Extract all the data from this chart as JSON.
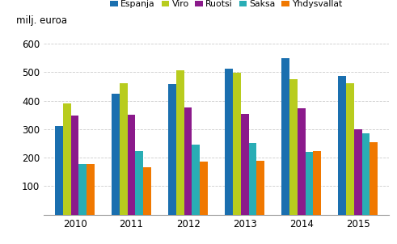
{
  "years": [
    "2010",
    "2011",
    "2012",
    "2013",
    "2014",
    "2015"
  ],
  "series": {
    "Espanja": [
      312,
      425,
      457,
      512,
      548,
      487
    ],
    "Viro": [
      390,
      462,
      505,
      497,
      475,
      460
    ],
    "Ruotsi": [
      348,
      350,
      377,
      352,
      372,
      300
    ],
    "Saksa": [
      178,
      222,
      247,
      251,
      220,
      285
    ],
    "Yhdysvallat": [
      178,
      167,
      185,
      190,
      222,
      253
    ]
  },
  "colors": {
    "Espanja": "#1a6faf",
    "Viro": "#b8cc1e",
    "Ruotsi": "#8b1a8b",
    "Saksa": "#29adb5",
    "Yhdysvallat": "#f07800"
  },
  "ylabel": "milj. euroa",
  "ylim": [
    0,
    650
  ],
  "yticks": [
    0,
    100,
    200,
    300,
    400,
    500,
    600
  ],
  "grid_color": "#cccccc"
}
